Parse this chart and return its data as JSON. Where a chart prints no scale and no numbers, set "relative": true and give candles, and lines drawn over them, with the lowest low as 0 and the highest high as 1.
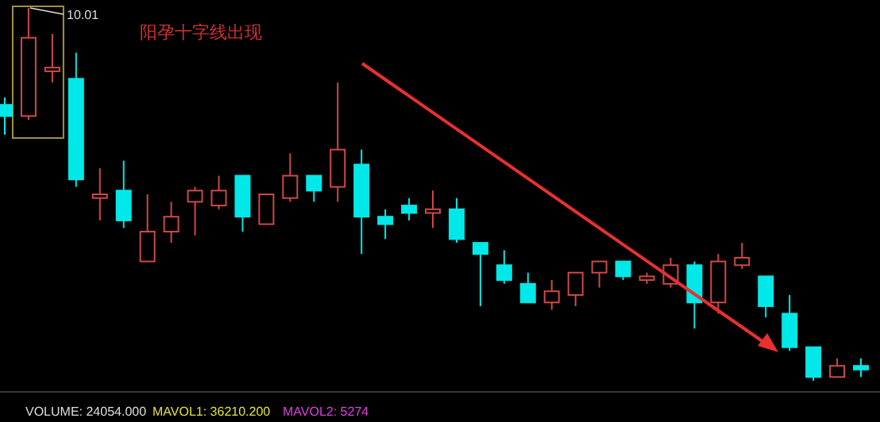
{
  "chart_data": {
    "type": "candlestick",
    "relative": true,
    "categories": [
      null,
      null,
      null,
      null,
      null,
      null,
      null,
      null,
      null,
      null,
      null,
      null,
      null,
      null,
      null,
      null,
      null,
      null,
      null,
      null,
      null,
      null,
      null,
      null,
      null,
      null,
      null,
      null,
      null,
      null,
      null,
      null,
      null,
      null,
      null,
      null,
      null
    ],
    "ohlc": [
      [
        0.74,
        0.76,
        0.66,
        0.71
      ],
      [
        0.71,
        1.0,
        0.7,
        0.92
      ],
      [
        0.83,
        0.93,
        0.8,
        0.84
      ],
      [
        0.81,
        0.88,
        0.52,
        0.54
      ],
      [
        0.49,
        0.57,
        0.43,
        0.5
      ],
      [
        0.51,
        0.59,
        0.41,
        0.43
      ],
      [
        0.32,
        0.5,
        0.32,
        0.4
      ],
      [
        0.4,
        0.48,
        0.37,
        0.44
      ],
      [
        0.48,
        0.52,
        0.39,
        0.51
      ],
      [
        0.47,
        0.55,
        0.46,
        0.51
      ],
      [
        0.55,
        0.55,
        0.4,
        0.44
      ],
      [
        0.42,
        0.5,
        0.42,
        0.5
      ],
      [
        0.49,
        0.61,
        0.48,
        0.55
      ],
      [
        0.55,
        0.55,
        0.48,
        0.51
      ],
      [
        0.52,
        0.8,
        0.48,
        0.62
      ],
      [
        0.58,
        0.62,
        0.34,
        0.44
      ],
      [
        0.44,
        0.46,
        0.38,
        0.42
      ],
      [
        0.47,
        0.49,
        0.43,
        0.45
      ],
      [
        0.45,
        0.51,
        0.41,
        0.46
      ],
      [
        0.46,
        0.49,
        0.37,
        0.38
      ],
      [
        0.37,
        0.37,
        0.2,
        0.34
      ],
      [
        0.31,
        0.35,
        0.26,
        0.27
      ],
      [
        0.26,
        0.29,
        0.21,
        0.21
      ],
      [
        0.21,
        0.27,
        0.19,
        0.24
      ],
      [
        0.23,
        0.29,
        0.2,
        0.29
      ],
      [
        0.29,
        0.32,
        0.25,
        0.32
      ],
      [
        0.32,
        0.32,
        0.27,
        0.28
      ],
      [
        0.27,
        0.29,
        0.26,
        0.28
      ],
      [
        0.26,
        0.33,
        0.25,
        0.31
      ],
      [
        0.31,
        0.32,
        0.14,
        0.21
      ],
      [
        0.21,
        0.34,
        0.18,
        0.32
      ],
      [
        0.31,
        0.37,
        0.3,
        0.33
      ],
      [
        0.28,
        0.28,
        0.17,
        0.2
      ],
      [
        0.18,
        0.23,
        0.08,
        0.09
      ],
      [
        0.09,
        0.09,
        0.0,
        0.01
      ],
      [
        0.01,
        0.06,
        0.01,
        0.04
      ],
      [
        0.04,
        0.06,
        0.01,
        0.03
      ]
    ],
    "colors": [
      "#00e8e8",
      "#d04848",
      "#d04848",
      "#00e8e8",
      "#d04848",
      "#00e8e8",
      "#d04848",
      "#d04848",
      "#d04848",
      "#d04848",
      "#00e8e8",
      "#d04848",
      "#d04848",
      "#00e8e8",
      "#d04848",
      "#00e8e8",
      "#00e8e8",
      "#00e8e8",
      "#d04848",
      "#00e8e8",
      "#00e8e8",
      "#00e8e8",
      "#00e8e8",
      "#d04848",
      "#d04848",
      "#d04848",
      "#00e8e8",
      "#d04848",
      "#d04848",
      "#00e8e8",
      "#d04848",
      "#d04848",
      "#00e8e8",
      "#00e8e8",
      "#00e8e8",
      "#d04848",
      "#00e8e8"
    ],
    "annotations": [
      "阳孕十字线出现",
      "10.01",
      "VOLUME: 24054.000",
      "MAVOL1: 36210.200",
      "MAVOL2: 5274"
    ]
  }
}
